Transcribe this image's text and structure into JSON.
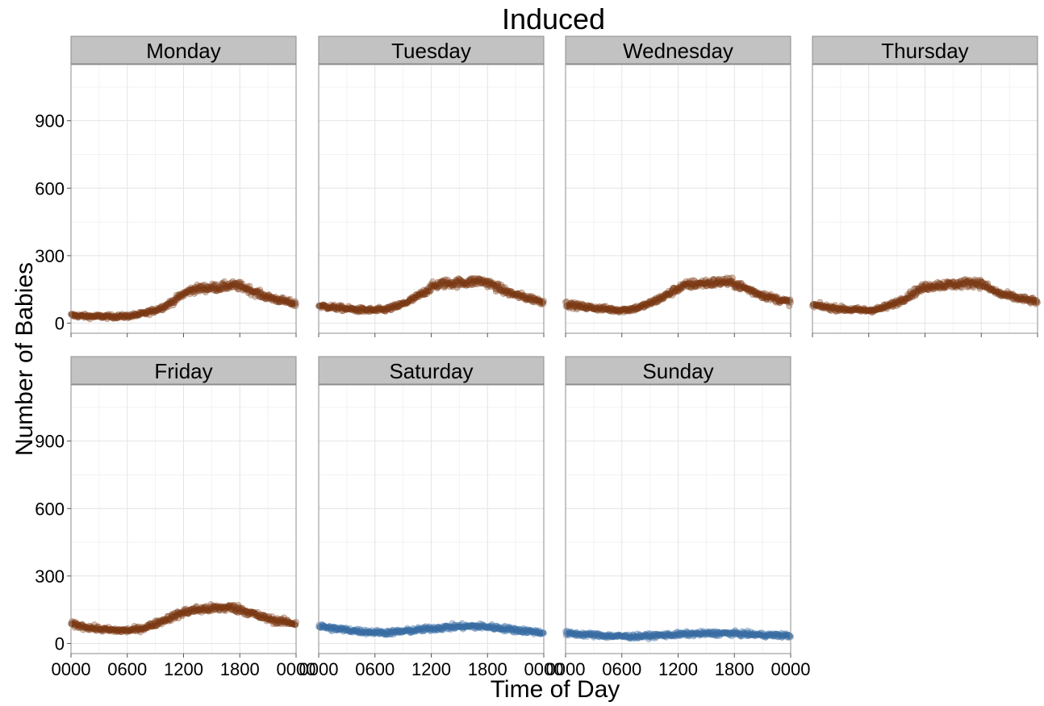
{
  "chart_data": {
    "type": "scatter",
    "title": "Induced",
    "xlabel": "Time of Day",
    "ylabel": "Number of Babies",
    "x_range_minutes": [
      0,
      1440
    ],
    "x_ticks": [
      {
        "value": 0,
        "label": "0000"
      },
      {
        "value": 360,
        "label": "0600"
      },
      {
        "value": 720,
        "label": "1200"
      },
      {
        "value": 1080,
        "label": "1800"
      },
      {
        "value": 1440,
        "label": "0000"
      }
    ],
    "ylim": [
      -45,
      1150
    ],
    "y_ticks": [
      0,
      300,
      600,
      900
    ],
    "grid": true,
    "weekday_color": "#7B3A14",
    "weekend_color": "#3A6EA5",
    "panels": [
      {
        "name": "Monday",
        "weekend": false,
        "x": [
          0,
          60,
          120,
          180,
          240,
          300,
          360,
          420,
          480,
          540,
          600,
          660,
          720,
          780,
          840,
          900,
          960,
          1020,
          1080,
          1140,
          1200,
          1260,
          1320,
          1380,
          1440
        ],
        "y": [
          35,
          32,
          30,
          30,
          29,
          30,
          31,
          36,
          45,
          58,
          75,
          100,
          130,
          150,
          155,
          158,
          160,
          168,
          165,
          150,
          130,
          115,
          105,
          95,
          85
        ]
      },
      {
        "name": "Tuesday",
        "weekend": false,
        "x": [
          0,
          60,
          120,
          180,
          240,
          300,
          360,
          420,
          480,
          540,
          600,
          660,
          720,
          780,
          840,
          900,
          960,
          1020,
          1080,
          1140,
          1200,
          1260,
          1320,
          1380,
          1440
        ],
        "y": [
          78,
          72,
          68,
          64,
          60,
          58,
          57,
          60,
          70,
          85,
          105,
          130,
          160,
          175,
          178,
          180,
          182,
          188,
          180,
          160,
          140,
          125,
          115,
          105,
          95
        ]
      },
      {
        "name": "Wednesday",
        "weekend": false,
        "x": [
          0,
          60,
          120,
          180,
          240,
          300,
          360,
          420,
          480,
          540,
          600,
          660,
          720,
          780,
          840,
          900,
          960,
          1020,
          1080,
          1140,
          1200,
          1260,
          1320,
          1380,
          1440
        ],
        "y": [
          85,
          78,
          72,
          68,
          64,
          60,
          58,
          62,
          72,
          88,
          108,
          130,
          155,
          170,
          175,
          178,
          180,
          185,
          176,
          158,
          140,
          125,
          112,
          102,
          92
        ]
      },
      {
        "name": "Thursday",
        "weekend": false,
        "x": [
          0,
          60,
          120,
          180,
          240,
          300,
          360,
          420,
          480,
          540,
          600,
          660,
          720,
          780,
          840,
          900,
          960,
          1020,
          1080,
          1140,
          1200,
          1260,
          1320,
          1380,
          1440
        ],
        "y": [
          80,
          74,
          68,
          64,
          60,
          58,
          57,
          62,
          75,
          92,
          115,
          140,
          160,
          168,
          170,
          172,
          175,
          182,
          176,
          150,
          130,
          120,
          110,
          102,
          95
        ]
      },
      {
        "name": "Friday",
        "weekend": false,
        "x": [
          0,
          60,
          120,
          180,
          240,
          300,
          360,
          420,
          480,
          540,
          600,
          660,
          720,
          780,
          840,
          900,
          960,
          1020,
          1080,
          1140,
          1200,
          1260,
          1320,
          1380,
          1440
        ],
        "y": [
          85,
          78,
          70,
          64,
          60,
          58,
          58,
          62,
          72,
          88,
          105,
          122,
          138,
          148,
          152,
          155,
          158,
          160,
          152,
          138,
          122,
          110,
          100,
          95,
          88
        ]
      },
      {
        "name": "Saturday",
        "weekend": true,
        "x": [
          0,
          60,
          120,
          180,
          240,
          300,
          360,
          420,
          480,
          540,
          600,
          660,
          720,
          780,
          840,
          900,
          960,
          1020,
          1080,
          1140,
          1200,
          1260,
          1320,
          1380,
          1440
        ],
        "y": [
          78,
          70,
          64,
          60,
          56,
          52,
          50,
          48,
          50,
          54,
          58,
          62,
          66,
          70,
          73,
          75,
          76,
          76,
          74,
          70,
          65,
          60,
          56,
          52,
          48
        ]
      },
      {
        "name": "Sunday",
        "weekend": true,
        "x": [
          0,
          60,
          120,
          180,
          240,
          300,
          360,
          420,
          480,
          540,
          600,
          660,
          720,
          780,
          840,
          900,
          960,
          1020,
          1080,
          1140,
          1200,
          1260,
          1320,
          1380,
          1440
        ],
        "y": [
          45,
          42,
          40,
          38,
          35,
          33,
          32,
          31,
          32,
          34,
          36,
          38,
          40,
          42,
          43,
          44,
          45,
          45,
          44,
          42,
          40,
          38,
          37,
          36,
          35
        ]
      }
    ]
  }
}
